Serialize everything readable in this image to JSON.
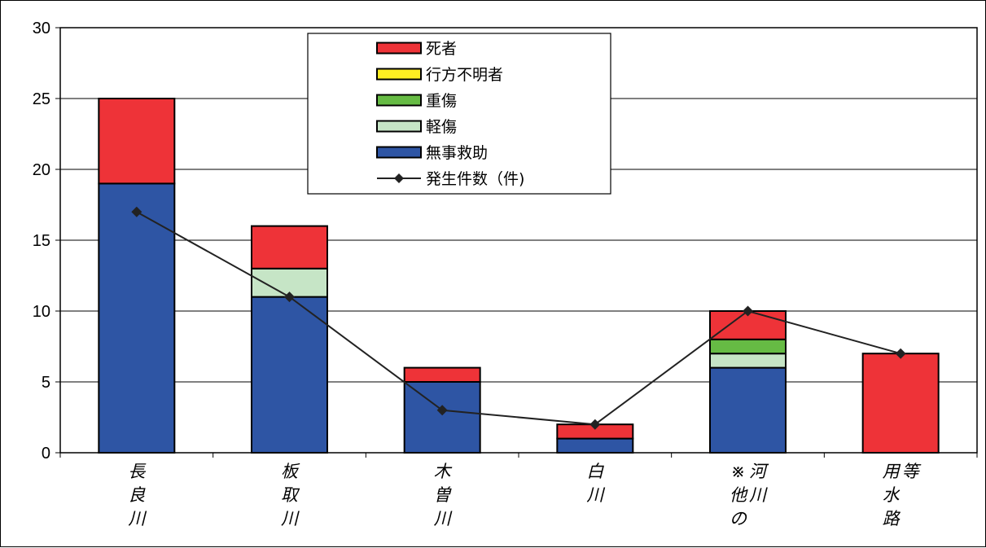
{
  "chart_data": {
    "type": "bar",
    "stacked": true,
    "categories": [
      "長良川",
      "板取川",
      "木曽川",
      "白川",
      "※他の河川",
      "用水路等"
    ],
    "category_label_columns": [
      [
        "長良川"
      ],
      [
        "板取川"
      ],
      [
        "木曽川"
      ],
      [
        "白川"
      ],
      [
        "河川",
        "※他の"
      ],
      [
        "等",
        "用水路"
      ]
    ],
    "series": [
      {
        "name": "無事救助",
        "color": "#2e55a4",
        "values": [
          19,
          11,
          5,
          1,
          6,
          0
        ]
      },
      {
        "name": "軽傷",
        "color": "#c6e5c6",
        "values": [
          0,
          2,
          0,
          0,
          1,
          0
        ]
      },
      {
        "name": "重傷",
        "color": "#66bb44",
        "values": [
          0,
          0,
          0,
          0,
          1,
          0
        ]
      },
      {
        "name": "行方不明者",
        "color": "#ffee22",
        "values": [
          0,
          0,
          0,
          0,
          0,
          0
        ]
      },
      {
        "name": "死者",
        "color": "#ee3338",
        "values": [
          6,
          3,
          1,
          1,
          2,
          7
        ]
      }
    ],
    "line_series": {
      "name": "発生件数（件)",
      "color": "#222222",
      "values": [
        17,
        11,
        3,
        2,
        10,
        7
      ]
    },
    "legend_order": [
      "死者",
      "行方不明者",
      "重傷",
      "軽傷",
      "無事救助",
      "発生件数（件)"
    ],
    "yticks": [
      "0",
      "5",
      "10",
      "15",
      "20",
      "25",
      "30"
    ],
    "ylim": [
      0,
      30
    ],
    "grid": true,
    "legend_position": "top-center",
    "title": "",
    "xlabel": "",
    "ylabel": ""
  }
}
